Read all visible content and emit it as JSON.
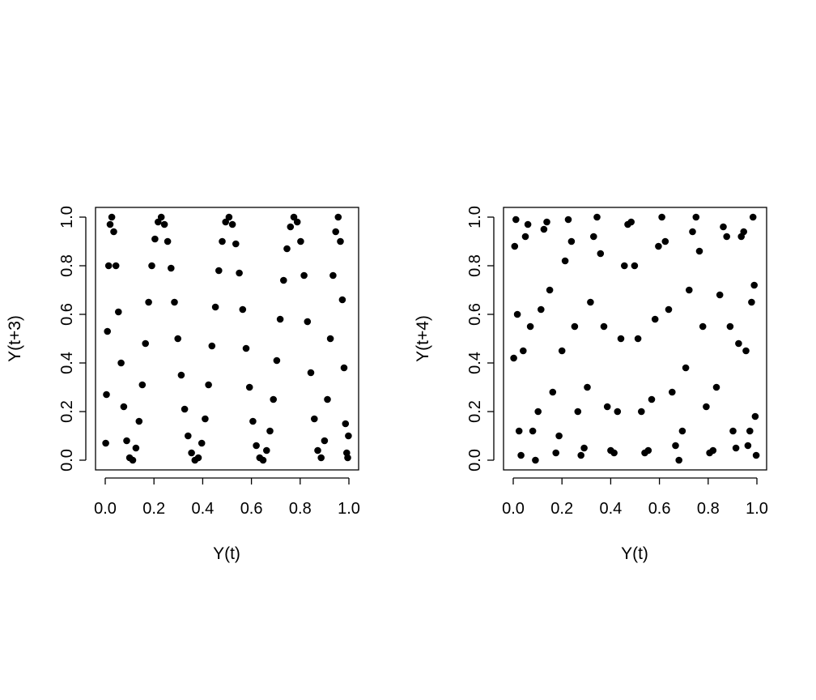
{
  "chart_data": [
    {
      "type": "scatter",
      "xlabel": "Y(t)",
      "ylabel": "Y(t+3)",
      "xlim": [
        0,
        1
      ],
      "ylim": [
        0,
        1
      ],
      "xticks": [
        "0.0",
        "0.2",
        "0.4",
        "0.6",
        "0.8",
        "1.0"
      ],
      "yticks": [
        "0.0",
        "0.2",
        "0.4",
        "0.6",
        "0.8",
        "1.0"
      ],
      "grid": false,
      "legend": "none",
      "point_color": "#000000",
      "x": [
        0.002,
        0.005,
        0.009,
        0.014,
        0.02,
        0.027,
        0.035,
        0.044,
        0.054,
        0.065,
        0.076,
        0.088,
        0.1,
        0.113,
        0.126,
        0.139,
        0.152,
        0.165,
        0.178,
        0.191,
        0.204,
        0.217,
        0.23,
        0.243,
        0.256,
        0.27,
        0.284,
        0.298,
        0.312,
        0.326,
        0.34,
        0.354,
        0.368,
        0.382,
        0.396,
        0.41,
        0.424,
        0.438,
        0.452,
        0.466,
        0.48,
        0.494,
        0.508,
        0.522,
        0.536,
        0.55,
        0.564,
        0.578,
        0.592,
        0.606,
        0.62,
        0.634,
        0.648,
        0.662,
        0.676,
        0.69,
        0.704,
        0.718,
        0.732,
        0.746,
        0.76,
        0.774,
        0.788,
        0.802,
        0.816,
        0.83,
        0.844,
        0.858,
        0.872,
        0.886,
        0.9,
        0.912,
        0.924,
        0.935,
        0.946,
        0.956,
        0.965,
        0.973,
        0.98,
        0.986,
        0.991,
        0.995,
        0.998
      ],
      "y": [
        0.07,
        0.27,
        0.53,
        0.8,
        0.97,
        1.0,
        0.94,
        0.8,
        0.61,
        0.4,
        0.22,
        0.08,
        0.01,
        0.0,
        0.05,
        0.16,
        0.31,
        0.48,
        0.65,
        0.8,
        0.91,
        0.98,
        1.0,
        0.97,
        0.9,
        0.79,
        0.65,
        0.5,
        0.35,
        0.21,
        0.1,
        0.03,
        0.0,
        0.01,
        0.07,
        0.17,
        0.31,
        0.47,
        0.63,
        0.78,
        0.9,
        0.98,
        1.0,
        0.97,
        0.89,
        0.77,
        0.62,
        0.46,
        0.3,
        0.16,
        0.06,
        0.01,
        0.0,
        0.04,
        0.12,
        0.25,
        0.41,
        0.58,
        0.74,
        0.87,
        0.96,
        1.0,
        0.98,
        0.9,
        0.76,
        0.57,
        0.36,
        0.17,
        0.04,
        0.01,
        0.08,
        0.25,
        0.5,
        0.76,
        0.94,
        1.0,
        0.9,
        0.66,
        0.38,
        0.15,
        0.03,
        0.01,
        0.1
      ]
    },
    {
      "type": "scatter",
      "xlabel": "Y(t)",
      "ylabel": "Y(t+4)",
      "xlim": [
        0,
        1
      ],
      "ylim": [
        0,
        1
      ],
      "xticks": [
        "0.0",
        "0.2",
        "0.4",
        "0.6",
        "0.8",
        "1.0"
      ],
      "yticks": [
        "0.0",
        "0.2",
        "0.4",
        "0.6",
        "0.8",
        "1.0"
      ],
      "grid": false,
      "legend": "none",
      "point_color": "#000000",
      "x": [
        0.002,
        0.006,
        0.011,
        0.017,
        0.024,
        0.032,
        0.041,
        0.05,
        0.06,
        0.07,
        0.08,
        0.091,
        0.102,
        0.114,
        0.126,
        0.138,
        0.15,
        0.162,
        0.175,
        0.188,
        0.2,
        0.213,
        0.226,
        0.239,
        0.252,
        0.265,
        0.278,
        0.291,
        0.304,
        0.317,
        0.33,
        0.344,
        0.358,
        0.372,
        0.386,
        0.4,
        0.414,
        0.428,
        0.442,
        0.456,
        0.47,
        0.484,
        0.498,
        0.512,
        0.526,
        0.54,
        0.554,
        0.568,
        0.582,
        0.596,
        0.61,
        0.624,
        0.638,
        0.652,
        0.666,
        0.68,
        0.694,
        0.708,
        0.722,
        0.736,
        0.75,
        0.764,
        0.778,
        0.792,
        0.806,
        0.82,
        0.834,
        0.848,
        0.862,
        0.876,
        0.89,
        0.902,
        0.914,
        0.925,
        0.936,
        0.946,
        0.955,
        0.963,
        0.971,
        0.978,
        0.984,
        0.989,
        0.993,
        0.997
      ],
      "y": [
        0.42,
        0.88,
        0.99,
        0.6,
        0.12,
        0.02,
        0.45,
        0.92,
        0.97,
        0.55,
        0.12,
        0.0,
        0.2,
        0.62,
        0.95,
        0.98,
        0.7,
        0.28,
        0.03,
        0.1,
        0.45,
        0.82,
        0.99,
        0.9,
        0.55,
        0.2,
        0.02,
        0.05,
        0.3,
        0.65,
        0.92,
        1.0,
        0.85,
        0.55,
        0.22,
        0.04,
        0.03,
        0.2,
        0.5,
        0.8,
        0.97,
        0.98,
        0.8,
        0.5,
        0.2,
        0.03,
        0.04,
        0.25,
        0.58,
        0.88,
        1.0,
        0.9,
        0.62,
        0.28,
        0.06,
        0.0,
        0.12,
        0.38,
        0.7,
        0.94,
        1.0,
        0.86,
        0.55,
        0.22,
        0.03,
        0.04,
        0.3,
        0.68,
        0.96,
        0.92,
        0.55,
        0.12,
        0.05,
        0.48,
        0.92,
        0.94,
        0.45,
        0.06,
        0.12,
        0.65,
        1.0,
        0.72,
        0.18,
        0.02
      ]
    }
  ]
}
